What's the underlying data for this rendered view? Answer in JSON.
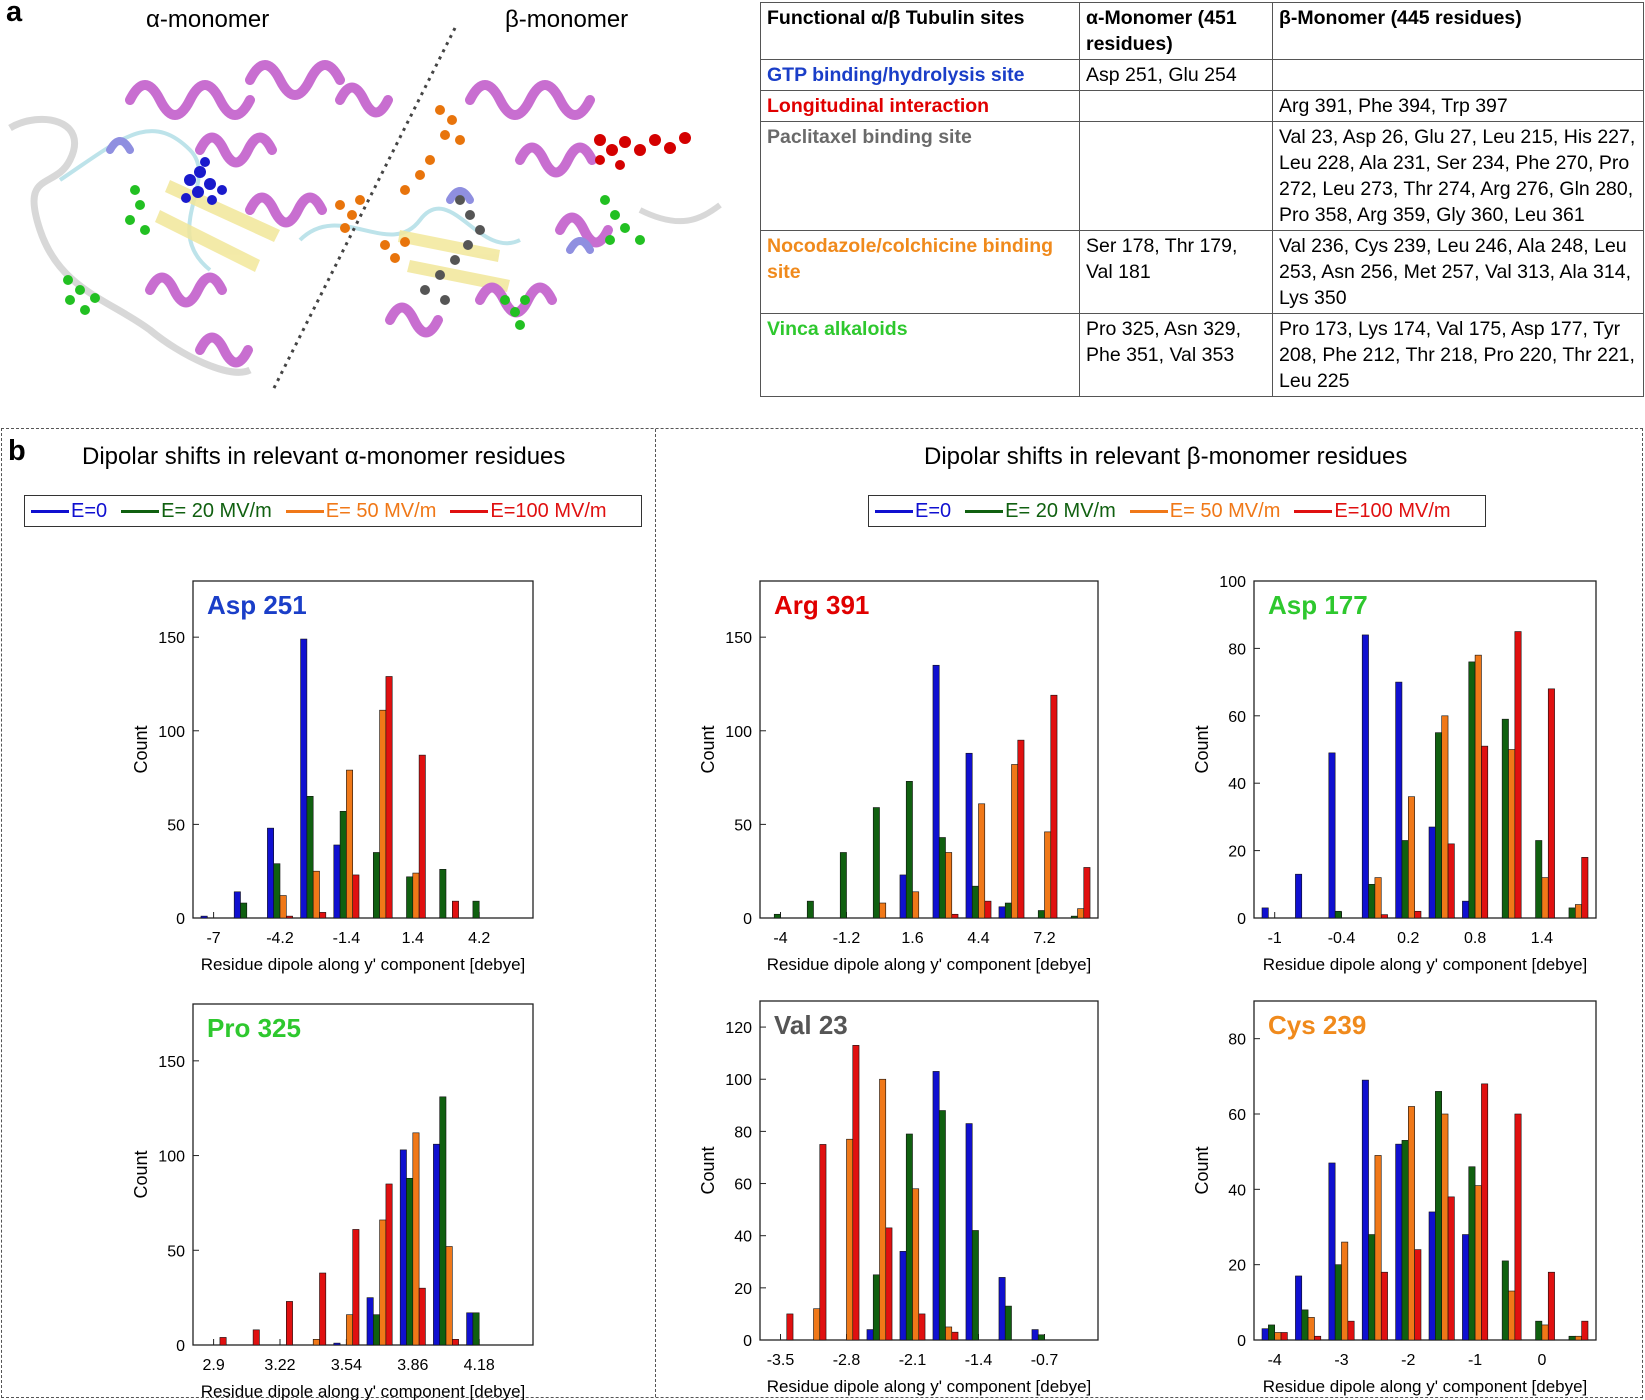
{
  "panel_labels": {
    "a": "a",
    "b": "b"
  },
  "structure": {
    "alpha_title": "α-monomer",
    "beta_title": "β-monomer",
    "colors": {
      "gtp": "#1a1acc",
      "longitudinal": "#d40000",
      "paclitaxel": "#4a4a4a",
      "nocodazole": "#e8740c",
      "vinca": "#22b022",
      "helix": "#c86ed0",
      "coil": "#a8d8e0",
      "sheet": "#f0e08c"
    }
  },
  "table": {
    "headers": [
      "Functional α/β Tubulin sites",
      "α-Monomer (451 residues)",
      "β-Monomer (445 residues)"
    ],
    "rows": [
      {
        "site": "GTP binding/hydrolysis site",
        "color": "#1a3ec8",
        "alpha": "Asp 251, Glu 254",
        "beta": ""
      },
      {
        "site": "Longitudinal interaction",
        "color": "#e00000",
        "alpha": "",
        "beta": "Arg 391, Phe 394, Trp 397"
      },
      {
        "site": "Paclitaxel binding site",
        "color": "#6a6a6a",
        "alpha": "",
        "beta": "Val 23, Asp 26, Glu 27, Leu 215, His 227, Leu 228, Ala 231, Ser 234, Phe 270, Pro 272, Leu 273, Thr 274, Arg 276, Gln 280,  Pro 358, Arg 359, Gly 360, Leu 361"
      },
      {
        "site": "Nocodazole/colchicine binding site",
        "color": "#f08a1c",
        "alpha": "Ser 178, Thr 179, Val 181",
        "beta": "Val 236, Cys 239, Leu 246, Ala 248, Leu 253, Asn 256, Met 257, Val 313, Ala 314, Lys 350"
      },
      {
        "site": "Vinca alkaloids",
        "color": "#2ec82e",
        "alpha": "Pro 325, Asn 329, Phe 351, Val 353",
        "beta": "Pro 173, Lys 174, Val 175, Asp 177, Tyr 208, Phe 212, Thr 218, Pro 220, Thr 221, Leu 225"
      }
    ]
  },
  "sections": {
    "alpha_title": "Dipolar shifts in relevant α-monomer residues",
    "beta_title": "Dipolar shifts in relevant β-monomer residues"
  },
  "legend": [
    {
      "label": "E=0",
      "color": "#1010d0"
    },
    {
      "label": "E= 20 MV/m",
      "color": "#106010"
    },
    {
      "label": "E= 50 MV/m",
      "color": "#f07818"
    },
    {
      "label": "E=100 MV/m",
      "color": "#e01010"
    }
  ],
  "chart_data": [
    {
      "type": "bar",
      "title": "Asp 251",
      "title_color": "#1a3ec8",
      "xlabel": "Residue dipole along y' component [debye]",
      "ylabel": "Count",
      "ylim": [
        0,
        180
      ],
      "yticks": [
        0,
        50,
        100,
        150
      ],
      "categories": [
        -7,
        -5.6,
        -4.2,
        -2.8,
        -1.4,
        0,
        1.4,
        2.8,
        4.2,
        5.6
      ],
      "xticks": [
        [
          0,
          "-7"
        ],
        [
          2,
          "-4.2"
        ],
        [
          4,
          "-1.4"
        ],
        [
          6,
          "1.4"
        ],
        [
          8,
          "4.2"
        ]
      ],
      "series": [
        {
          "name": "E=0",
          "values": [
            1,
            14,
            48,
            149,
            39,
            0,
            0,
            0,
            0,
            0
          ]
        },
        {
          "name": "E= 20 MV/m",
          "values": [
            0,
            8,
            29,
            65,
            57,
            35,
            22,
            26,
            9,
            0
          ]
        },
        {
          "name": "E= 50 MV/m",
          "values": [
            0,
            0,
            12,
            25,
            79,
            111,
            24,
            0,
            0,
            0
          ]
        },
        {
          "name": "E=100 MV/m",
          "values": [
            0,
            0,
            1,
            3,
            23,
            129,
            87,
            9,
            0,
            0
          ]
        }
      ]
    },
    {
      "type": "bar",
      "title": "Pro 325",
      "title_color": "#2ec82e",
      "xlabel": "Residue dipole along y' component [debye]",
      "ylabel": "Count",
      "ylim": [
        0,
        180
      ],
      "yticks": [
        0,
        50,
        100,
        150
      ],
      "categories": [
        2.9,
        3.06,
        3.22,
        3.38,
        3.54,
        3.7,
        3.86,
        4.02,
        4.18,
        4.34
      ],
      "xticks": [
        [
          0,
          "2.9"
        ],
        [
          2,
          "3.22"
        ],
        [
          4,
          "3.54"
        ],
        [
          6,
          "3.86"
        ],
        [
          8,
          "4.18"
        ]
      ],
      "series": [
        {
          "name": "E=0",
          "values": [
            0,
            0,
            0,
            0,
            1,
            25,
            103,
            106,
            17,
            0
          ]
        },
        {
          "name": "E= 20 MV/m",
          "values": [
            0,
            0,
            0,
            0,
            0,
            16,
            88,
            131,
            17,
            0
          ]
        },
        {
          "name": "E= 50 MV/m",
          "values": [
            0,
            0,
            0,
            3,
            16,
            66,
            112,
            52,
            0,
            0
          ]
        },
        {
          "name": "E=100 MV/m",
          "values": [
            4,
            8,
            23,
            38,
            61,
            85,
            30,
            3,
            0,
            0
          ]
        }
      ]
    },
    {
      "type": "bar",
      "title": "Arg 391",
      "title_color": "#e00000",
      "xlabel": "Residue dipole along y' component [debye]",
      "ylabel": "Count",
      "ylim": [
        0,
        180
      ],
      "yticks": [
        0,
        50,
        100,
        150
      ],
      "categories": [
        -4,
        -2.6,
        -1.2,
        0.2,
        1.6,
        3,
        4.4,
        5.8,
        7.2,
        8.6
      ],
      "xticks": [
        [
          0,
          "-4"
        ],
        [
          2,
          "-1.2"
        ],
        [
          4,
          "1.6"
        ],
        [
          6,
          "4.4"
        ],
        [
          8,
          "7.2"
        ]
      ],
      "series": [
        {
          "name": "E=0",
          "values": [
            0,
            0,
            0,
            0,
            23,
            135,
            88,
            6,
            0,
            0
          ]
        },
        {
          "name": "E= 20 MV/m",
          "values": [
            2,
            9,
            35,
            59,
            73,
            43,
            17,
            8,
            4,
            1
          ]
        },
        {
          "name": "E= 50 MV/m",
          "values": [
            0,
            0,
            0,
            8,
            14,
            35,
            61,
            82,
            46,
            5
          ]
        },
        {
          "name": "E=100 MV/m",
          "values": [
            0,
            0,
            0,
            0,
            0,
            2,
            9,
            95,
            119,
            27
          ]
        }
      ]
    },
    {
      "type": "bar",
      "title": "Asp 177",
      "title_color": "#2ec82e",
      "xlabel": "Residue dipole along y' component [debye]",
      "ylabel": "Count",
      "ylim": [
        0,
        100
      ],
      "yticks": [
        0,
        20,
        40,
        60,
        80,
        100
      ],
      "categories": [
        -1,
        -0.7,
        -0.4,
        -0.1,
        0.2,
        0.5,
        0.8,
        1.1,
        1.4,
        1.7
      ],
      "xticks": [
        [
          0,
          "-1"
        ],
        [
          2,
          "-0.4"
        ],
        [
          4,
          "0.2"
        ],
        [
          6,
          "0.8"
        ],
        [
          8,
          "1.4"
        ]
      ],
      "series": [
        {
          "name": "E=0",
          "values": [
            3,
            13,
            49,
            84,
            70,
            27,
            5,
            0,
            0,
            0
          ]
        },
        {
          "name": "E= 20 MV/m",
          "values": [
            0,
            0,
            2,
            10,
            23,
            55,
            76,
            59,
            23,
            3
          ]
        },
        {
          "name": "E= 50 MV/m",
          "values": [
            0,
            0,
            0,
            12,
            36,
            60,
            78,
            50,
            12,
            4
          ]
        },
        {
          "name": "E=100 MV/m",
          "values": [
            0,
            0,
            0,
            1,
            2,
            22,
            51,
            85,
            68,
            18
          ]
        }
      ]
    },
    {
      "type": "bar",
      "title": "Val 23",
      "title_color": "#555555",
      "xlabel": "Residue dipole along y' component [debye]",
      "ylabel": "Count",
      "ylim": [
        0,
        130
      ],
      "yticks": [
        0,
        20,
        40,
        60,
        80,
        100,
        120
      ],
      "categories": [
        -3.5,
        -3.15,
        -2.8,
        -2.45,
        -2.1,
        -1.75,
        -1.4,
        -1.05,
        -0.7,
        -0.35
      ],
      "xticks": [
        [
          0,
          "-3.5"
        ],
        [
          2,
          "-2.8"
        ],
        [
          4,
          "-2.1"
        ],
        [
          6,
          "-1.4"
        ],
        [
          8,
          "-0.7"
        ]
      ],
      "series": [
        {
          "name": "E=0",
          "values": [
            0,
            0,
            0,
            4,
            34,
            103,
            83,
            24,
            4,
            0
          ]
        },
        {
          "name": "E= 20 MV/m",
          "values": [
            0,
            0,
            0,
            25,
            79,
            88,
            42,
            13,
            2,
            0
          ]
        },
        {
          "name": "E= 50 MV/m",
          "values": [
            0,
            12,
            77,
            100,
            58,
            5,
            0,
            0,
            0,
            0
          ]
        },
        {
          "name": "E=100 MV/m",
          "values": [
            10,
            75,
            113,
            43,
            10,
            3,
            0,
            0,
            0,
            0
          ]
        }
      ]
    },
    {
      "type": "bar",
      "title": "Cys 239",
      "title_color": "#f08a1c",
      "xlabel": "Residue dipole along y' component [debye]",
      "ylabel": "Count",
      "ylim": [
        0,
        90
      ],
      "yticks": [
        0,
        20,
        40,
        60,
        80
      ],
      "categories": [
        -4,
        -3.5,
        -3,
        -2.5,
        -2,
        -1.5,
        -1,
        -0.5,
        0,
        0.5
      ],
      "xticks": [
        [
          0,
          "-4"
        ],
        [
          2,
          "-3"
        ],
        [
          4,
          "-2"
        ],
        [
          6,
          "-1"
        ],
        [
          8,
          "0"
        ]
      ],
      "series": [
        {
          "name": "E=0",
          "values": [
            3,
            17,
            47,
            69,
            52,
            34,
            28,
            0,
            0,
            0
          ]
        },
        {
          "name": "E= 20 MV/m",
          "values": [
            4,
            8,
            20,
            28,
            53,
            66,
            46,
            21,
            5,
            1
          ]
        },
        {
          "name": "E= 50 MV/m",
          "values": [
            2,
            6,
            26,
            49,
            62,
            60,
            41,
            13,
            4,
            1
          ]
        },
        {
          "name": "E=100 MV/m",
          "values": [
            2,
            1,
            5,
            18,
            24,
            38,
            68,
            60,
            18,
            5
          ]
        }
      ]
    }
  ]
}
